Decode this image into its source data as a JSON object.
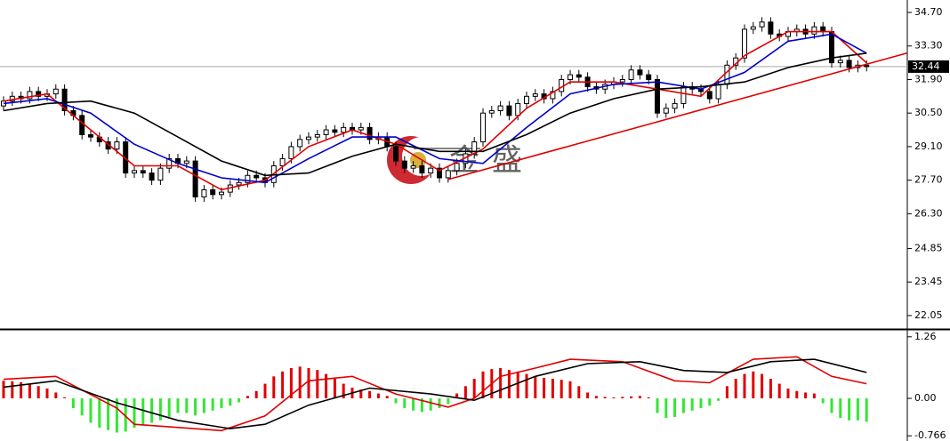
{
  "watermark": {
    "chars": [
      "金",
      "盛"
    ]
  },
  "chart_data": [
    {
      "type": "candlestick",
      "open": [
        30.8,
        31.0,
        31.2,
        31.1,
        31.4,
        31.2,
        31.3,
        31.5,
        30.6,
        30.4,
        29.6,
        29.5,
        29.3,
        29.0,
        29.3,
        28.0,
        28.1,
        28.0,
        27.7,
        28.2,
        28.6,
        28.4,
        28.5,
        27.0,
        27.3,
        27.1,
        27.2,
        27.5,
        27.6,
        27.9,
        27.8,
        27.6,
        28.3,
        28.6,
        29.1,
        29.4,
        29.5,
        29.6,
        29.8,
        29.7,
        29.9,
        29.8,
        29.9,
        29.4,
        29.5,
        29.1,
        28.5,
        28.2,
        28.3,
        28.0,
        28.2,
        27.8,
        28.1,
        28.4,
        28.8,
        29.3,
        30.5,
        30.6,
        30.8,
        30.4,
        30.9,
        31.2,
        31.3,
        31.1,
        31.4,
        31.9,
        32.1,
        32.0,
        31.6,
        31.5,
        31.7,
        31.8,
        31.9,
        32.3,
        32.1,
        31.9,
        30.5,
        30.7,
        30.9,
        31.6,
        31.5,
        31.4,
        31.1,
        31.7,
        32.5,
        32.8,
        34.0,
        34.1,
        34.3,
        33.8,
        33.7,
        33.9,
        34.0,
        33.8,
        34.1,
        33.9,
        32.6,
        32.7,
        32.4,
        32.5
      ],
      "high": [
        31.2,
        31.4,
        31.4,
        31.6,
        31.6,
        31.5,
        31.7,
        31.7,
        30.8,
        30.6,
        29.8,
        29.7,
        29.5,
        29.5,
        29.5,
        28.3,
        28.3,
        28.2,
        28.4,
        28.8,
        28.8,
        28.7,
        28.7,
        27.5,
        27.5,
        27.4,
        27.7,
        27.8,
        28.1,
        28.1,
        28.0,
        28.5,
        28.8,
        29.3,
        29.6,
        29.7,
        29.8,
        30.0,
        30.0,
        30.1,
        30.1,
        30.1,
        30.1,
        29.7,
        29.7,
        29.3,
        28.7,
        28.5,
        28.5,
        28.4,
        28.4,
        28.3,
        28.6,
        29.0,
        29.5,
        30.7,
        30.8,
        31.0,
        31.0,
        31.1,
        31.4,
        31.5,
        31.5,
        31.6,
        32.1,
        32.3,
        32.3,
        32.2,
        31.8,
        31.9,
        32.0,
        32.1,
        32.5,
        32.5,
        32.3,
        32.1,
        30.9,
        31.1,
        31.8,
        31.8,
        31.7,
        31.6,
        31.9,
        32.7,
        33.0,
        34.2,
        34.3,
        34.5,
        34.5,
        34.0,
        34.1,
        34.2,
        34.2,
        34.3,
        34.3,
        34.1,
        32.9,
        32.9,
        32.7,
        32.7
      ],
      "low": [
        30.6,
        30.8,
        30.9,
        30.9,
        31.0,
        31.0,
        31.1,
        30.4,
        30.2,
        29.4,
        29.3,
        29.1,
        28.8,
        28.8,
        27.8,
        27.8,
        27.8,
        27.5,
        27.5,
        28.0,
        28.2,
        28.2,
        26.8,
        26.8,
        26.9,
        26.9,
        27.0,
        27.3,
        27.4,
        27.6,
        27.4,
        27.4,
        28.1,
        28.4,
        28.9,
        29.2,
        29.3,
        29.4,
        29.5,
        29.5,
        29.6,
        29.6,
        29.2,
        29.2,
        28.9,
        28.3,
        28.0,
        28.0,
        27.8,
        27.8,
        27.6,
        27.6,
        27.9,
        28.2,
        28.6,
        29.1,
        30.3,
        30.4,
        30.2,
        30.2,
        30.7,
        31.0,
        30.9,
        30.9,
        31.2,
        31.7,
        31.8,
        31.4,
        31.3,
        31.3,
        31.5,
        31.6,
        31.7,
        31.9,
        31.7,
        30.3,
        30.3,
        30.5,
        30.7,
        31.3,
        31.2,
        30.9,
        30.9,
        31.5,
        32.3,
        32.6,
        33.8,
        33.9,
        33.6,
        33.5,
        33.5,
        33.7,
        33.6,
        33.6,
        33.7,
        32.4,
        32.4,
        32.2,
        32.2,
        32.24
      ],
      "close": [
        31.0,
        31.2,
        31.1,
        31.4,
        31.2,
        31.3,
        31.5,
        30.6,
        30.4,
        29.6,
        29.5,
        29.3,
        29.0,
        29.3,
        28.0,
        28.1,
        28.0,
        27.7,
        28.2,
        28.6,
        28.4,
        28.5,
        27.0,
        27.3,
        27.1,
        27.2,
        27.5,
        27.6,
        27.9,
        27.8,
        27.6,
        28.3,
        28.6,
        29.1,
        29.4,
        29.5,
        29.6,
        29.8,
        29.7,
        29.9,
        29.8,
        29.9,
        29.4,
        29.5,
        29.1,
        28.5,
        28.2,
        28.3,
        28.0,
        28.2,
        27.8,
        28.1,
        28.4,
        28.8,
        29.3,
        30.5,
        30.6,
        30.8,
        30.4,
        30.9,
        31.2,
        31.3,
        31.1,
        31.4,
        31.9,
        32.1,
        32.0,
        31.6,
        31.5,
        31.7,
        31.8,
        31.9,
        32.3,
        32.1,
        31.9,
        30.5,
        30.7,
        30.9,
        31.6,
        31.5,
        31.4,
        31.1,
        31.7,
        32.5,
        32.8,
        34.0,
        34.1,
        34.3,
        33.8,
        33.7,
        33.9,
        34.0,
        33.8,
        34.1,
        33.9,
        32.6,
        32.7,
        32.4,
        32.5,
        32.44
      ],
      "moving_averages": [
        {
          "color": "#e00000",
          "x": [
            0,
            5,
            10,
            15,
            20,
            25,
            30,
            35,
            40,
            45,
            50,
            55,
            60,
            65,
            70,
            75,
            80,
            85,
            90,
            95,
            99
          ],
          "values": [
            31.0,
            31.3,
            29.8,
            28.3,
            28.3,
            27.3,
            27.7,
            29.1,
            29.8,
            29.2,
            28.1,
            29.0,
            30.7,
            31.8,
            31.8,
            31.5,
            31.2,
            32.9,
            33.9,
            33.9,
            32.6
          ]
        },
        {
          "color": "#0000cc",
          "x": [
            0,
            5,
            10,
            15,
            20,
            25,
            30,
            35,
            40,
            45,
            50,
            55,
            60,
            65,
            70,
            75,
            80,
            85,
            90,
            95,
            99
          ],
          "values": [
            30.9,
            31.1,
            30.5,
            29.2,
            28.4,
            27.8,
            27.6,
            28.6,
            29.5,
            29.5,
            28.6,
            28.4,
            29.9,
            31.3,
            31.7,
            31.8,
            31.5,
            32.2,
            33.5,
            33.8,
            33.0
          ]
        },
        {
          "color": "#000000",
          "x": [
            0,
            5,
            10,
            15,
            20,
            25,
            30,
            35,
            40,
            45,
            50,
            55,
            60,
            65,
            70,
            75,
            80,
            85,
            90,
            95,
            99
          ],
          "values": [
            30.6,
            30.9,
            31.0,
            30.5,
            29.5,
            28.5,
            27.9,
            28.0,
            28.7,
            29.2,
            28.9,
            28.9,
            29.6,
            30.5,
            31.1,
            31.5,
            31.6,
            31.8,
            32.4,
            32.8,
            33.0
          ]
        }
      ],
      "trendline": {
        "color": "#e00000",
        "x": [
          51,
          103.6
        ],
        "values": [
          27.73,
          33.0
        ]
      },
      "current_price": 32.44,
      "ylim": [
        21.49,
        35.22
      ],
      "yticks": [
        {
          "value": 34.7,
          "label": "34.70"
        },
        {
          "value": 33.3,
          "label": "33.30"
        },
        {
          "value": 31.9,
          "label": "31.90"
        },
        {
          "value": 30.5,
          "label": "30.50"
        },
        {
          "value": 29.1,
          "label": "29.10"
        },
        {
          "value": 27.7,
          "label": "27.70"
        },
        {
          "value": 26.3,
          "label": "26.30"
        },
        24.85,
        23.45,
        22.05
      ]
    },
    {
      "type": "macd",
      "histogram": {
        "up_color": "#e00000",
        "down_color": "#33e633",
        "values": [
          0.36,
          0.35,
          0.33,
          0.3,
          0.25,
          0.2,
          0.12,
          0.02,
          -0.2,
          -0.35,
          -0.5,
          -0.6,
          -0.65,
          -0.7,
          -0.68,
          -0.6,
          -0.55,
          -0.5,
          -0.45,
          -0.38,
          -0.3,
          -0.3,
          -0.35,
          -0.3,
          -0.25,
          -0.2,
          -0.15,
          -0.08,
          0.05,
          0.15,
          0.3,
          0.45,
          0.55,
          0.62,
          0.65,
          0.62,
          0.58,
          0.5,
          0.4,
          0.3,
          0.22,
          0.18,
          0.15,
          0.1,
          0.05,
          -0.1,
          -0.2,
          -0.25,
          -0.28,
          -0.25,
          -0.2,
          -0.12,
          0.1,
          0.25,
          0.4,
          0.55,
          0.6,
          0.62,
          0.58,
          0.55,
          0.5,
          0.45,
          0.42,
          0.4,
          0.38,
          0.35,
          0.25,
          0.12,
          0.05,
          0.03,
          0.02,
          0.03,
          0.04,
          0.05,
          0.02,
          -0.3,
          -0.4,
          -0.38,
          -0.3,
          -0.25,
          -0.2,
          -0.15,
          -0.05,
          0.25,
          0.4,
          0.5,
          0.55,
          0.5,
          0.4,
          0.3,
          0.2,
          0.15,
          0.12,
          0.1,
          -0.1,
          -0.3,
          -0.4,
          -0.45,
          -0.45,
          -0.48
        ]
      },
      "lines": [
        {
          "color": "#e00000",
          "x": [
            0,
            6,
            13,
            15,
            25,
            30,
            35,
            40,
            45,
            51,
            54,
            57,
            61,
            65,
            71,
            77,
            81,
            86,
            91,
            95,
            99
          ],
          "values": [
            0.39,
            0.45,
            -0.2,
            -0.53,
            -0.66,
            -0.36,
            0.36,
            0.45,
            0.09,
            -0.18,
            0.0,
            0.45,
            0.62,
            0.8,
            0.75,
            0.36,
            0.32,
            0.8,
            0.85,
            0.45,
            0.3
          ]
        },
        {
          "color": "#000000",
          "x": [
            0,
            6,
            13,
            20,
            26,
            30,
            35,
            42,
            49,
            54,
            61,
            67,
            73,
            78,
            83,
            88,
            93,
            99
          ],
          "values": [
            0.23,
            0.36,
            -0.09,
            -0.45,
            -0.62,
            -0.53,
            -0.14,
            0.21,
            0.09,
            -0.04,
            0.45,
            0.71,
            0.75,
            0.57,
            0.53,
            0.75,
            0.8,
            0.53
          ]
        }
      ],
      "ylim": [
        -0.8,
        1.384
      ],
      "yticks": [
        1.26,
        {
          "value": 0,
          "label": "0.00"
        },
        -0.766
      ]
    }
  ]
}
